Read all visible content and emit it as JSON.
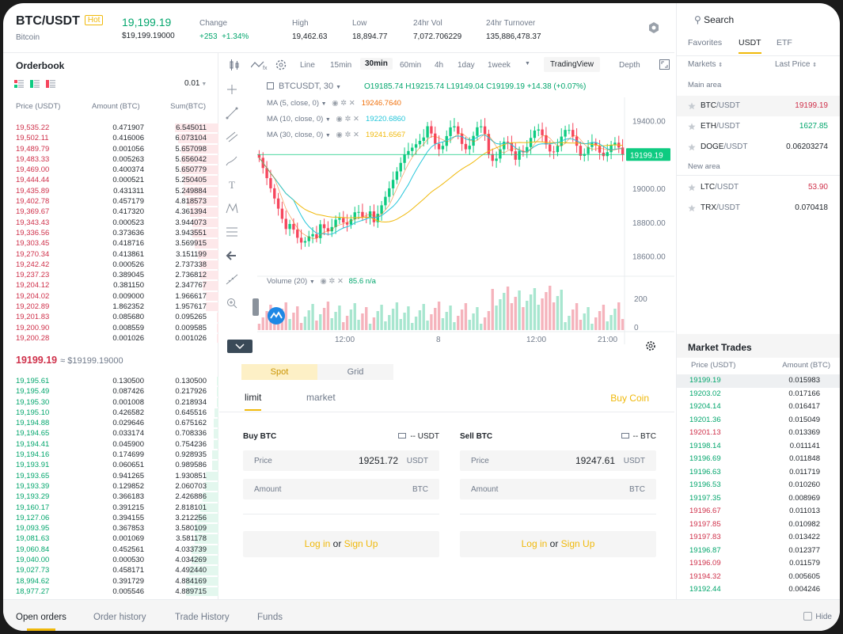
{
  "header": {
    "pair": "BTC/USDT",
    "hot": "Hot",
    "name": "Bitcoin",
    "price": "19,199.19",
    "price_usd": "$19,199.19000",
    "change_label": "Change",
    "change_value": "+253",
    "change_pct": "+1.34%",
    "high_label": "High",
    "high_value": "19,462.63",
    "low_label": "Low",
    "low_value": "18,894.77",
    "vol_label": "24hr Vol",
    "vol_value": "7,072.706229",
    "turnover_label": "24hr Turnover",
    "turnover_value": "135,886,478.37"
  },
  "orderbook": {
    "title": "Orderbook",
    "precision": "0.01",
    "col_price": "Price (USDT)",
    "col_amount": "Amount (BTC)",
    "col_sum": "Sum(BTC)",
    "asks": [
      [
        "19,535.22",
        "0.471907",
        "6.545011"
      ],
      [
        "19,502.11",
        "0.416006",
        "6.073104"
      ],
      [
        "19,489.79",
        "0.001056",
        "5.657098"
      ],
      [
        "19,483.33",
        "0.005263",
        "5.656042"
      ],
      [
        "19,469.00",
        "0.400374",
        "5.650779"
      ],
      [
        "19,444.44",
        "0.000521",
        "5.250405"
      ],
      [
        "19,435.89",
        "0.431311",
        "5.249884"
      ],
      [
        "19,402.78",
        "0.457179",
        "4.818573"
      ],
      [
        "19,369.67",
        "0.417320",
        "4.361394"
      ],
      [
        "19,343.43",
        "0.000523",
        "3.944073"
      ],
      [
        "19,336.56",
        "0.373636",
        "3.943551"
      ],
      [
        "19,303.45",
        "0.418716",
        "3.569915"
      ],
      [
        "19,270.34",
        "0.413861",
        "3.151199"
      ],
      [
        "19,242.42",
        "0.000526",
        "2.737338"
      ],
      [
        "19,237.23",
        "0.389045",
        "2.736812"
      ],
      [
        "19,204.12",
        "0.381150",
        "2.347767"
      ],
      [
        "19,204.02",
        "0.009000",
        "1.966617"
      ],
      [
        "19,202.89",
        "1.862352",
        "1.957617"
      ],
      [
        "19,201.83",
        "0.085680",
        "0.095265"
      ],
      [
        "19,200.90",
        "0.008559",
        "0.009585"
      ],
      [
        "19,200.28",
        "0.001026",
        "0.001026"
      ]
    ],
    "mid_price": "19199.19",
    "mid_usd": "≈ $19199.19000",
    "bids": [
      [
        "19,195.61",
        "0.130500",
        "0.130500"
      ],
      [
        "19,195.49",
        "0.087426",
        "0.217926"
      ],
      [
        "19,195.30",
        "0.001008",
        "0.218934"
      ],
      [
        "19,195.10",
        "0.426582",
        "0.645516"
      ],
      [
        "19,194.88",
        "0.029646",
        "0.675162"
      ],
      [
        "19,194.65",
        "0.033174",
        "0.708336"
      ],
      [
        "19,194.41",
        "0.045900",
        "0.754236"
      ],
      [
        "19,194.16",
        "0.174699",
        "0.928935"
      ],
      [
        "19,193.91",
        "0.060651",
        "0.989586"
      ],
      [
        "19,193.65",
        "0.941265",
        "1.930851"
      ],
      [
        "19,193.39",
        "0.129852",
        "2.060703"
      ],
      [
        "19,193.29",
        "0.366183",
        "2.426886"
      ],
      [
        "19,160.17",
        "0.391215",
        "2.818101"
      ],
      [
        "19,127.06",
        "0.394155",
        "3.212256"
      ],
      [
        "19,093.95",
        "0.367853",
        "3.580109"
      ],
      [
        "19,081.63",
        "0.001069",
        "3.581178"
      ],
      [
        "19,060.84",
        "0.452561",
        "4.033739"
      ],
      [
        "19,040.00",
        "0.000530",
        "4.034269"
      ],
      [
        "19,027.73",
        "0.458171",
        "4.492440"
      ],
      [
        "18,994.62",
        "0.391729",
        "4.884169"
      ],
      [
        "18,977.27",
        "0.005546",
        "4.889715"
      ]
    ]
  },
  "chart": {
    "timeframes": [
      "Line",
      "15min",
      "30min",
      "60min",
      "4h",
      "1day",
      "1week"
    ],
    "active_tf": "30min",
    "view_tradingview": "TradingView",
    "view_depth": "Depth",
    "symbol": "BTCUSDT, 30",
    "ohlc": {
      "o": "O19185.74",
      "h": "H19215.74",
      "l": "L19149.04",
      "c": "C19199.19",
      "chg": "+14.38 (+0.07%)"
    },
    "ma5": {
      "label": "MA (5, close, 0)",
      "value": "19246.7640",
      "color": "#f0700b"
    },
    "ma10": {
      "label": "MA (10, close, 0)",
      "value": "19220.6860",
      "color": "#26c6da"
    },
    "ma30": {
      "label": "MA (30, close, 0)",
      "value": "19241.6567",
      "color": "#f0b90b"
    },
    "volume_label": "Volume (20)",
    "volume_value": "85.6",
    "volume_na": "n/a",
    "price_axis": [
      "19400.00",
      "19000.00",
      "18800.00",
      "18600.00"
    ],
    "last_price_tag": "19199.19",
    "vol_axis": [
      "200",
      "0"
    ],
    "time_axis": [
      "12:00",
      "8",
      "12:00",
      "21:00"
    ]
  },
  "trade": {
    "seg_spot": "Spot",
    "seg_grid": "Grid",
    "tab_limit": "limit",
    "tab_market": "market",
    "buy_coin": "Buy Coin",
    "buy": {
      "title": "Buy BTC",
      "balance": "-- USDT",
      "price_label": "Price",
      "price_value": "19251.72",
      "price_unit": "USDT",
      "amount_label": "Amount",
      "amount_unit": "BTC",
      "login": "Log in",
      "or": "or",
      "signup": "Sign Up"
    },
    "sell": {
      "title": "Sell BTC",
      "balance": "-- BTC",
      "price_label": "Price",
      "price_value": "19247.61",
      "price_unit": "USDT",
      "amount_label": "Amount",
      "amount_unit": "BTC",
      "login": "Log in",
      "or": "or",
      "signup": "Sign Up"
    }
  },
  "markets": {
    "search": "Search",
    "tabs": [
      "Favorites",
      "USDT",
      "ETF"
    ],
    "active_tab": "USDT",
    "col_markets": "Markets",
    "col_last": "Last Price",
    "main_area": "Main area",
    "new_area": "New area",
    "main": [
      {
        "base": "BTC",
        "quote": "/USDT",
        "price": "19199.19",
        "color": "#cf304a"
      },
      {
        "base": "ETH",
        "quote": "/USDT",
        "price": "1627.85",
        "color": "#03a66d"
      },
      {
        "base": "DOGE",
        "quote": "/USDT",
        "price": "0.06203274",
        "color": "#1e2329"
      }
    ],
    "new": [
      {
        "base": "LTC",
        "quote": "/USDT",
        "price": "53.90",
        "color": "#cf304a"
      },
      {
        "base": "TRX",
        "quote": "/USDT",
        "price": "0.070418",
        "color": "#1e2329"
      }
    ]
  },
  "market_trades": {
    "title": "Market Trades",
    "col_price": "Price (USDT)",
    "col_amount": "Amount (BTC)",
    "rows": [
      [
        "19199.19",
        "0.015983",
        "g"
      ],
      [
        "19203.02",
        "0.017166",
        "g"
      ],
      [
        "19204.14",
        "0.016417",
        "g"
      ],
      [
        "19201.36",
        "0.015049",
        "g"
      ],
      [
        "19201.13",
        "0.013369",
        "r"
      ],
      [
        "19198.14",
        "0.011141",
        "g"
      ],
      [
        "19196.69",
        "0.011848",
        "g"
      ],
      [
        "19196.63",
        "0.011719",
        "g"
      ],
      [
        "19196.53",
        "0.010260",
        "g"
      ],
      [
        "19197.35",
        "0.008969",
        "g"
      ],
      [
        "19196.67",
        "0.011013",
        "r"
      ],
      [
        "19197.85",
        "0.010982",
        "r"
      ],
      [
        "19197.83",
        "0.013422",
        "r"
      ],
      [
        "19196.87",
        "0.012377",
        "g"
      ],
      [
        "19196.09",
        "0.011579",
        "r"
      ],
      [
        "19194.32",
        "0.005605",
        "r"
      ],
      [
        "19192.44",
        "0.004246",
        "g"
      ]
    ]
  },
  "bottom": {
    "tabs": [
      "Open orders",
      "Order history",
      "Trade History",
      "Funds"
    ],
    "hide": "Hide"
  }
}
